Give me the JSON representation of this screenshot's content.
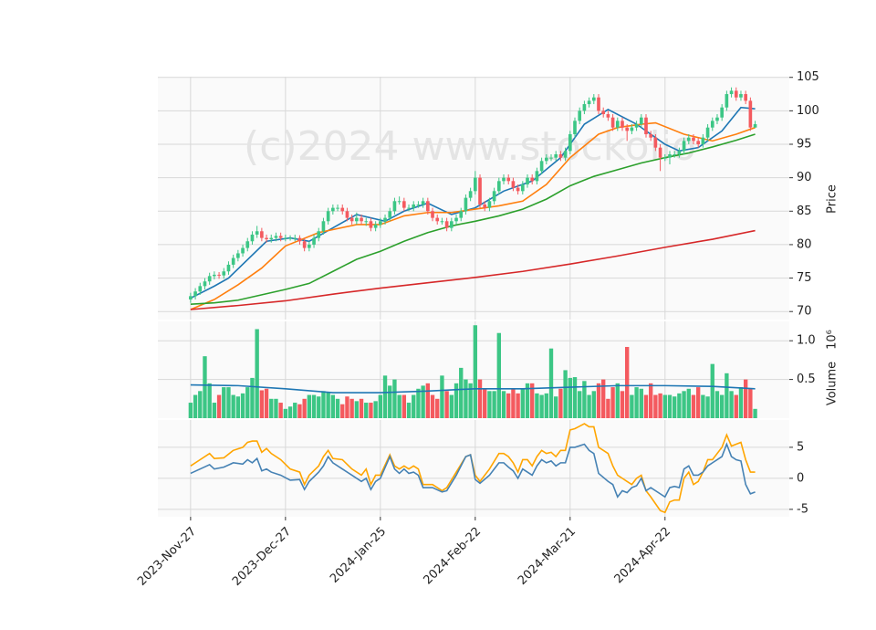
{
  "chart_data": [
    {
      "type": "candlestick",
      "ylabel": "Price",
      "watermark": "(c)2024 www.stockolio",
      "up_color": "#3cc685",
      "down_color": "#f45a5f",
      "ylim": [
        68.8,
        105.1
      ],
      "yticks": [
        70,
        75,
        80,
        85,
        90,
        95,
        100,
        105
      ],
      "grid": true,
      "open": [
        71.8,
        72.3,
        73,
        73.8,
        74.5,
        75.3,
        75.5,
        75.4,
        76,
        77,
        78,
        78.7,
        79.5,
        80.5,
        81.5,
        82,
        81,
        80.8,
        81,
        81.3,
        81,
        81,
        81,
        81,
        80.5,
        79.5,
        80,
        81,
        82,
        83.5,
        85,
        85.5,
        85.5,
        85,
        84,
        83.5,
        84,
        83.5,
        83.5,
        82.5,
        83,
        83.5,
        84,
        85,
        86.5,
        86.5,
        85.5,
        85.5,
        86,
        86,
        86.5,
        85,
        84,
        83.5,
        83.5,
        82.5,
        83.5,
        84,
        85,
        87,
        88,
        90,
        86,
        85.5,
        86.5,
        88,
        89.5,
        90,
        89.5,
        88.5,
        88,
        89,
        90,
        89.5,
        91,
        92.5,
        93,
        93,
        93.5,
        93,
        94,
        96.5,
        98.5,
        100,
        101,
        101.5,
        102,
        100,
        99.5,
        99,
        97.5,
        98.5,
        97.5,
        97,
        97.5,
        98,
        99,
        96.5,
        96,
        94.5,
        93,
        93,
        93.5,
        93.5,
        94,
        95.5,
        96,
        95.5,
        95,
        96,
        97.5,
        98.5,
        99,
        100.5,
        102.5,
        103,
        102,
        102.5,
        101.5,
        97.5
      ],
      "high": [
        72.8,
        73.5,
        74.3,
        75,
        75.8,
        76,
        75.9,
        76.5,
        77.5,
        78.5,
        79.2,
        80,
        81,
        82,
        82.8,
        82.5,
        81.5,
        81.5,
        81.8,
        81.8,
        81.5,
        81.4,
        81.5,
        81.4,
        81,
        80.5,
        81.5,
        82.5,
        84,
        85.5,
        86,
        86,
        86,
        85.5,
        84.5,
        84.8,
        84.5,
        84,
        84,
        83.5,
        84,
        84.5,
        85.5,
        87,
        87.2,
        87,
        86,
        86.5,
        86.5,
        87,
        87,
        85.5,
        84.5,
        84,
        84,
        84,
        84.5,
        85.5,
        87.5,
        88.5,
        91,
        90.5,
        86.5,
        87,
        88.5,
        90,
        90.5,
        90.5,
        90,
        89,
        89.5,
        90.5,
        90.5,
        91.5,
        93,
        93.5,
        93.5,
        94,
        94,
        94.5,
        97,
        99,
        100.5,
        101.5,
        102,
        102.5,
        102.5,
        100.5,
        100,
        99.5,
        99,
        99,
        98,
        98,
        98.5,
        99.5,
        99.5,
        97,
        96.5,
        95,
        93.5,
        94,
        94,
        94.5,
        96,
        96.5,
        96.5,
        96,
        96.5,
        98,
        99,
        99.5,
        101,
        103,
        103.5,
        103.5,
        103,
        103,
        102,
        98.5
      ],
      "low": [
        71.3,
        71.8,
        72.5,
        73.3,
        74,
        74.8,
        74.9,
        74.9,
        75.5,
        76.5,
        77.5,
        78.2,
        79,
        80,
        81,
        80.5,
        80.3,
        80.3,
        80.5,
        80.5,
        80.5,
        80.6,
        80.5,
        80,
        79,
        79,
        79.5,
        80.5,
        81.5,
        83,
        84.5,
        85,
        84.5,
        83.5,
        83,
        83,
        83,
        82.8,
        82,
        82,
        82.5,
        83,
        83.5,
        84.5,
        86,
        85,
        85,
        85,
        85.5,
        85.5,
        84.5,
        83.5,
        83,
        83,
        82,
        82,
        83,
        83.5,
        84.5,
        86.5,
        87.5,
        85.5,
        85,
        85,
        86,
        87.5,
        89,
        89,
        88,
        87.5,
        87.5,
        88.5,
        89,
        89,
        90.5,
        92,
        92.5,
        92.5,
        92.5,
        92.5,
        93.5,
        96,
        98,
        99.5,
        100.5,
        101,
        99.5,
        99,
        98.5,
        97,
        97,
        97,
        95.5,
        96.5,
        97,
        97.5,
        96,
        95.5,
        94,
        91,
        92.5,
        92,
        93,
        93,
        93.5,
        95,
        95,
        94.5,
        94.5,
        95.5,
        97,
        98,
        98.5,
        100,
        102,
        101.5,
        101.5,
        101,
        97,
        97.5
      ],
      "close": [
        72.3,
        73,
        73.8,
        74.5,
        75.3,
        75.5,
        75.4,
        76,
        77,
        78,
        78.7,
        79.5,
        80.5,
        81.5,
        82,
        81,
        80.8,
        81,
        81.3,
        81,
        81,
        81,
        81,
        80.5,
        79.5,
        80,
        81,
        82,
        83.5,
        85,
        85.5,
        85.5,
        85,
        84,
        83.5,
        84,
        83.5,
        83.5,
        82.5,
        83,
        83.5,
        84,
        85,
        86.5,
        86.5,
        85.5,
        85.5,
        86,
        86,
        86.5,
        85,
        84,
        83.5,
        83.5,
        82.5,
        83.5,
        84,
        85,
        87,
        88,
        90,
        86,
        85.5,
        86.5,
        88,
        89.5,
        90,
        89.5,
        88.5,
        88,
        89,
        90,
        89.5,
        91,
        92.5,
        93,
        93,
        93.5,
        93,
        94,
        96.5,
        98.5,
        100,
        101,
        101.5,
        102,
        100,
        99.5,
        99,
        97.5,
        98.5,
        97.5,
        97,
        97.5,
        98,
        99,
        96.5,
        96,
        94.5,
        93,
        93,
        93.5,
        93.5,
        94,
        95.5,
        96,
        95.5,
        95,
        96,
        97.5,
        98.5,
        99,
        100.5,
        102.5,
        103,
        102,
        102.5,
        101.5,
        97.5,
        98
      ],
      "series": [
        {
          "color": "#1f77b4",
          "x": [
            0,
            5,
            8,
            16,
            21,
            25,
            30,
            35,
            41,
            45,
            50,
            55,
            60,
            66,
            72,
            78,
            83,
            88,
            94,
            100,
            103,
            107,
            112,
            116,
            119
          ],
          "values": [
            72,
            73.8,
            75,
            80.5,
            81,
            80.5,
            82.5,
            84.5,
            83.5,
            85,
            86.2,
            84.5,
            85.5,
            88,
            89.5,
            93,
            98,
            100.2,
            98,
            95,
            94,
            94.5,
            97,
            100.5,
            100.3
          ]
        },
        {
          "color": "#ff7f0e",
          "x": [
            0,
            5,
            10,
            15,
            20,
            27,
            35,
            40,
            45,
            50,
            55,
            60,
            65,
            70,
            75,
            80,
            86,
            90,
            95,
            98,
            104,
            110,
            115,
            119
          ],
          "values": [
            70.3,
            71.8,
            74,
            76.5,
            79.8,
            81.8,
            83,
            83,
            84.3,
            84.8,
            84.8,
            85.3,
            85.8,
            86.5,
            89,
            93,
            96.5,
            97.5,
            98,
            98.2,
            96.5,
            95.5,
            96.5,
            97.5
          ]
        },
        {
          "color": "#2ca02c",
          "x": [
            0,
            5,
            10,
            15,
            20,
            25,
            30,
            35,
            40,
            45,
            50,
            55,
            60,
            65,
            70,
            75,
            80,
            85,
            90,
            95,
            100,
            105,
            110,
            115,
            119
          ],
          "values": [
            71.1,
            71.3,
            71.7,
            72.5,
            73.3,
            74.2,
            76,
            77.8,
            79,
            80.5,
            81.8,
            82.8,
            83.5,
            84.3,
            85.3,
            86.8,
            88.8,
            90.2,
            91.2,
            92.2,
            93,
            93.7,
            94.6,
            95.6,
            96.5
          ]
        },
        {
          "color": "#d62728",
          "x": [
            0,
            10,
            20,
            30,
            40,
            50,
            60,
            70,
            80,
            90,
            100,
            110,
            119
          ],
          "values": [
            70.3,
            70.9,
            71.6,
            72.6,
            73.5,
            74.3,
            75.1,
            76,
            77.1,
            78.3,
            79.6,
            80.8,
            82.1
          ]
        }
      ]
    },
    {
      "type": "bar",
      "ylabel": "Volume",
      "scale_label": "10⁶",
      "ylim": [
        0,
        1.25
      ],
      "yticks": [
        0.5,
        {
          "value": 1,
          "label": "1.0"
        }
      ],
      "grid": true,
      "values": [
        0.2,
        0.3,
        0.35,
        0.8,
        0.45,
        0.2,
        0.3,
        0.4,
        0.4,
        0.3,
        0.28,
        0.32,
        0.4,
        0.52,
        1.15,
        0.36,
        0.38,
        0.25,
        0.25,
        0.2,
        0.12,
        0.15,
        0.2,
        0.18,
        0.25,
        0.3,
        0.3,
        0.28,
        0.35,
        0.34,
        0.3,
        0.25,
        0.18,
        0.28,
        0.25,
        0.22,
        0.25,
        0.2,
        0.2,
        0.22,
        0.3,
        0.55,
        0.42,
        0.5,
        0.3,
        0.3,
        0.2,
        0.3,
        0.38,
        0.42,
        0.45,
        0.3,
        0.25,
        0.55,
        0.35,
        0.3,
        0.45,
        0.65,
        0.5,
        0.45,
        1.2,
        0.5,
        0.38,
        0.35,
        0.35,
        1.1,
        0.35,
        0.32,
        0.38,
        0.32,
        0.38,
        0.45,
        0.45,
        0.32,
        0.3,
        0.32,
        0.9,
        0.28,
        0.38,
        0.62,
        0.52,
        0.53,
        0.35,
        0.48,
        0.3,
        0.35,
        0.45,
        0.5,
        0.25,
        0.4,
        0.45,
        0.35,
        0.92,
        0.3,
        0.4,
        0.38,
        0.3,
        0.45,
        0.3,
        0.32,
        0.3,
        0.3,
        0.28,
        0.32,
        0.35,
        0.38,
        0.3,
        0.4,
        0.3,
        0.28,
        0.7,
        0.35,
        0.3,
        0.58,
        0.35,
        0.3,
        0.4,
        0.5,
        0.38,
        0.12
      ],
      "series": [
        {
          "color": "#1f77b4",
          "x": [
            0,
            10,
            20,
            30,
            40,
            50,
            60,
            70,
            80,
            90,
            100,
            110,
            119
          ],
          "values": [
            0.43,
            0.42,
            0.38,
            0.33,
            0.33,
            0.35,
            0.38,
            0.38,
            0.4,
            0.42,
            0.42,
            0.41,
            0.38
          ]
        }
      ]
    },
    {
      "type": "line",
      "ylim": [
        -6.2,
        9.4
      ],
      "yticks": [
        -5,
        0,
        5
      ],
      "grid": true,
      "xlim": [
        -6.9,
        126.2
      ],
      "xticks": [
        {
          "value": 0,
          "label": "2023-Nov-27"
        },
        {
          "value": 20,
          "label": "2023-Dec-27"
        },
        {
          "value": 40,
          "label": "2024-Jan-25"
        },
        {
          "value": 60,
          "label": "2024-Feb-22"
        },
        {
          "value": 80,
          "label": "2024-Mar-21"
        },
        {
          "value": 100,
          "label": "2024-Apr-22"
        }
      ],
      "x": [
        0,
        2,
        4,
        5,
        7,
        9,
        11,
        12,
        13,
        14,
        15,
        16,
        17,
        19,
        21,
        23,
        24,
        25,
        27,
        28,
        29,
        30,
        32,
        34,
        36,
        37,
        38,
        39,
        40,
        42,
        43,
        44,
        45,
        46,
        47,
        48,
        49,
        51,
        53,
        54,
        56,
        58,
        59,
        60,
        61,
        63,
        65,
        66,
        67,
        68,
        69,
        70,
        71,
        72,
        73,
        74,
        75,
        76,
        77,
        78,
        79,
        80,
        81,
        83,
        84,
        85,
        86,
        88,
        89,
        90,
        91,
        92,
        93,
        94,
        95,
        96,
        97,
        99,
        100,
        101,
        102,
        103,
        104,
        105,
        106,
        107,
        108,
        109,
        110,
        112,
        113,
        114,
        115,
        116,
        117,
        118,
        119
      ],
      "series": [
        {
          "color": "#ffa500",
          "values": [
            2,
            3,
            4,
            3.2,
            3.3,
            4.5,
            5,
            5.8,
            6,
            6,
            4.2,
            4.8,
            4,
            3,
            1.5,
            1,
            -1,
            0.5,
            2,
            3.5,
            4.5,
            3.2,
            3,
            1.5,
            0.5,
            1.5,
            -1,
            0.5,
            0.5,
            3.8,
            2,
            1.5,
            2,
            1.5,
            2,
            1.5,
            -1,
            -1,
            -2,
            -1.5,
            1,
            3.5,
            3.8,
            0.5,
            -0.5,
            1.5,
            4,
            4,
            3.5,
            2.5,
            1,
            3,
            3,
            2,
            3.5,
            4.5,
            4,
            4.2,
            3.5,
            4.5,
            4.5,
            7.8,
            8,
            8.8,
            8.3,
            8.3,
            5,
            4,
            2,
            0.5,
            0,
            -0.5,
            -1,
            0,
            0.5,
            -2,
            -3,
            -5.2,
            -5.5,
            -3.8,
            -3.5,
            -3.5,
            0,
            1,
            -1,
            -0.5,
            1,
            3,
            3,
            5,
            7,
            5.2,
            5.5,
            5.8,
            3,
            1,
            1
          ]
        },
        {
          "color": "#4682b4",
          "values": [
            0.8,
            1.5,
            2.2,
            1.5,
            1.8,
            2.5,
            2.3,
            3,
            2.5,
            3.2,
            1.2,
            1.5,
            1,
            0.5,
            -0.3,
            -0.2,
            -1.8,
            -0.5,
            1,
            2,
            3.5,
            2.5,
            1.5,
            0.5,
            -0.5,
            0,
            -1.8,
            -0.5,
            0,
            3.5,
            1.5,
            0.8,
            1.5,
            0.8,
            1,
            0.5,
            -1.5,
            -1.5,
            -2.2,
            -2,
            0.5,
            3.5,
            3.8,
            -0.2,
            -0.8,
            0.5,
            2.5,
            2.5,
            1.8,
            1.2,
            0,
            1.5,
            1,
            0.5,
            2,
            3,
            2.5,
            2.8,
            2,
            2.5,
            2.5,
            5,
            5,
            5.5,
            4.5,
            4,
            0.8,
            -0.5,
            -1,
            -3,
            -2,
            -2.3,
            -1.5,
            -1.2,
            0,
            -2,
            -1.5,
            -2.5,
            -3,
            -1.5,
            -1.3,
            -1.5,
            1.5,
            2,
            0.5,
            0.5,
            1,
            2,
            2.5,
            3.5,
            5.5,
            3.5,
            3,
            2.8,
            -1,
            -2.5,
            -2.2
          ]
        }
      ]
    }
  ]
}
